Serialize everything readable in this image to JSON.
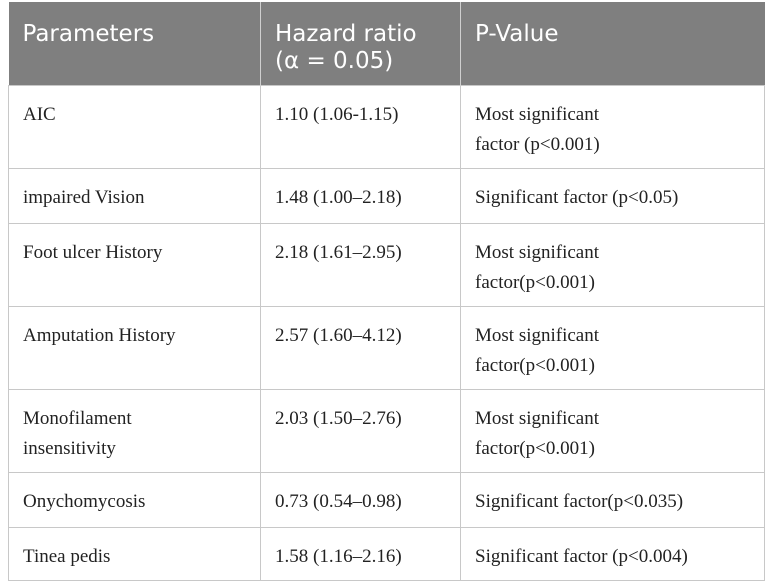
{
  "table": {
    "headers": [
      "Parameters",
      "Hazard ratio\n(α = 0.05)",
      "P-Value"
    ],
    "rows": [
      {
        "parameter": "AIC",
        "hazard_ratio": "1.10 (1.06-1.15)",
        "p_value": "Most significant factor (p<0.001)"
      },
      {
        "parameter": "impaired Vision",
        "hazard_ratio": "1.48 (1.00–2.18)",
        "p_value": "Significant factor (p<0.05)"
      },
      {
        "parameter": "Foot ulcer History",
        "hazard_ratio": "2.18 (1.61–2.95)",
        "p_value": "Most significant factor(p<0.001)"
      },
      {
        "parameter": "Amputation History",
        "hazard_ratio": "2.57 (1.60–4.12)",
        "p_value": "Most significant factor(p<0.001)"
      },
      {
        "parameter": "Monofilament insensitivity",
        "hazard_ratio": "2.03 (1.50–2.76)",
        "p_value": "Most significant factor(p<0.001)"
      },
      {
        "parameter": "Onychomycosis",
        "hazard_ratio": "0.73 (0.54–0.98)",
        "p_value": "Significant factor(p<0.035)"
      },
      {
        "parameter": "Tinea pedis",
        "hazard_ratio": "1.58 (1.16–2.16)",
        "p_value": "Significant factor (p<0.004)"
      }
    ]
  }
}
